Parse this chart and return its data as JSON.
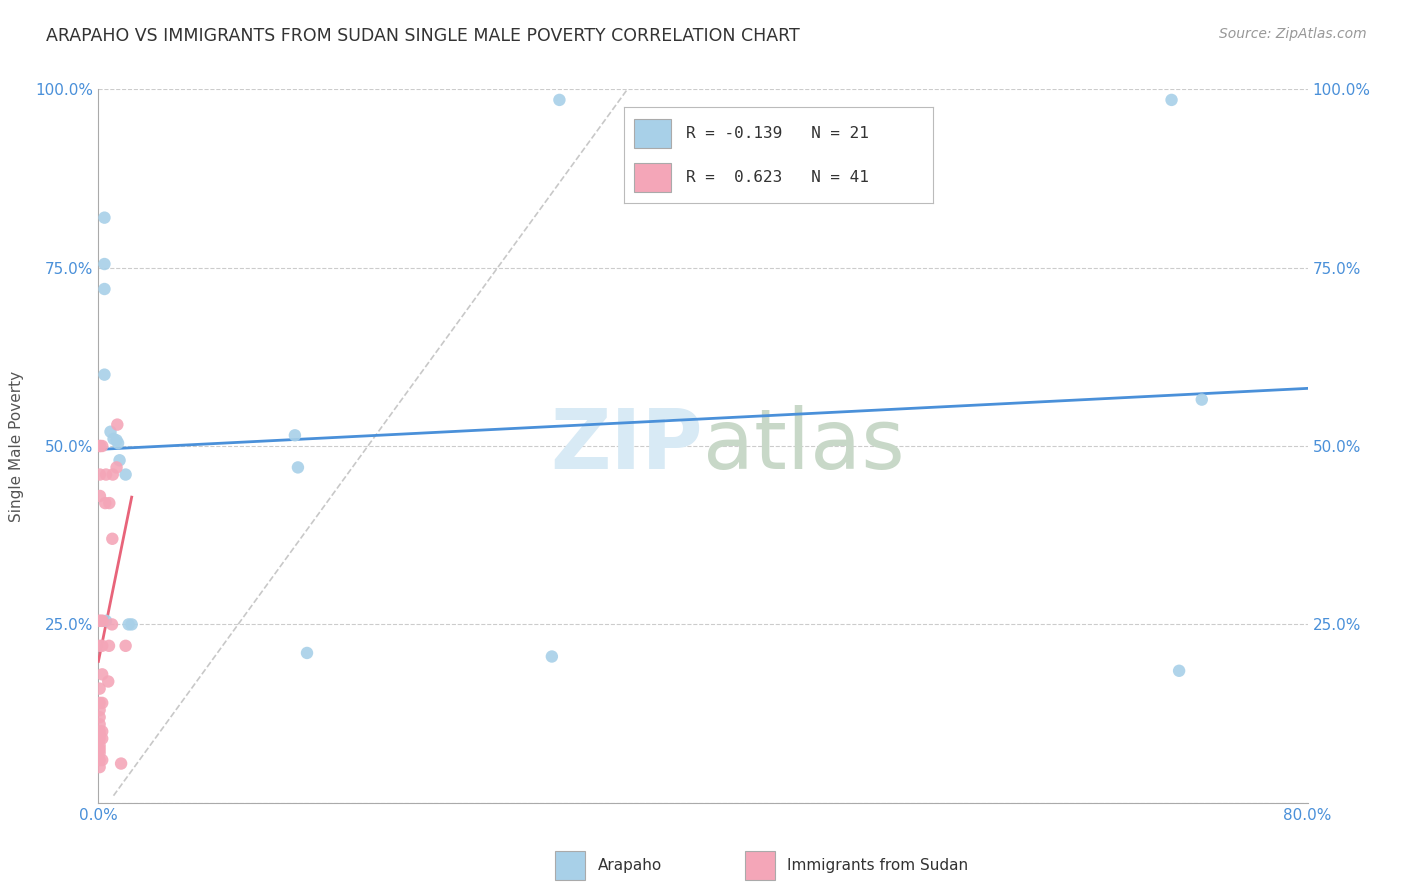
{
  "title": "ARAPAHO VS IMMIGRANTS FROM SUDAN SINGLE MALE POVERTY CORRELATION CHART",
  "source": "Source: ZipAtlas.com",
  "ylabel": "Single Male Poverty",
  "xlim": [
    0.0,
    0.8
  ],
  "ylim": [
    0.0,
    1.0
  ],
  "xticks": [
    0.0,
    0.1,
    0.2,
    0.3,
    0.4,
    0.5,
    0.6,
    0.7,
    0.8
  ],
  "xticklabels": [
    "0.0%",
    "",
    "",
    "",
    "",
    "",
    "",
    "",
    "80.0%"
  ],
  "yticks": [
    0.0,
    0.25,
    0.5,
    0.75,
    1.0
  ],
  "yticklabels": [
    "",
    "25.0%",
    "50.0%",
    "75.0%",
    "100.0%"
  ],
  "legend1_r": "-0.139",
  "legend1_n": "21",
  "legend2_r": "0.623",
  "legend2_n": "41",
  "color_blue": "#A8D0E8",
  "color_pink": "#F4A6B8",
  "color_blue_line": "#4A90D9",
  "color_pink_line": "#E8647A",
  "watermark_color": "#D8EAF5",
  "arapaho_x": [
    0.004,
    0.004,
    0.004,
    0.004,
    0.005,
    0.008,
    0.01,
    0.012,
    0.013,
    0.014,
    0.018,
    0.02,
    0.022,
    0.13,
    0.132,
    0.138,
    0.3,
    0.305,
    0.71,
    0.715,
    0.73
  ],
  "arapaho_y": [
    0.82,
    0.755,
    0.72,
    0.6,
    0.255,
    0.52,
    0.51,
    0.508,
    0.504,
    0.48,
    0.46,
    0.25,
    0.25,
    0.515,
    0.47,
    0.21,
    0.205,
    0.985,
    0.985,
    0.185,
    0.565
  ],
  "sudan_x": [
    0.0008,
    0.0008,
    0.0008,
    0.0008,
    0.0008,
    0.0008,
    0.0008,
    0.0008,
    0.0008,
    0.0008,
    0.0008,
    0.0008,
    0.0008,
    0.0008,
    0.0008,
    0.0008,
    0.001,
    0.001,
    0.001,
    0.001,
    0.0025,
    0.0025,
    0.0025,
    0.0025,
    0.0025,
    0.0025,
    0.0025,
    0.0025,
    0.0025,
    0.0045,
    0.005,
    0.0065,
    0.007,
    0.0072,
    0.009,
    0.0092,
    0.0095,
    0.012,
    0.0125,
    0.015,
    0.018
  ],
  "sudan_y": [
    0.05,
    0.06,
    0.07,
    0.075,
    0.08,
    0.09,
    0.095,
    0.1,
    0.11,
    0.12,
    0.13,
    0.14,
    0.16,
    0.22,
    0.255,
    0.255,
    0.43,
    0.46,
    0.5,
    0.5,
    0.06,
    0.09,
    0.1,
    0.14,
    0.18,
    0.22,
    0.255,
    0.255,
    0.5,
    0.42,
    0.46,
    0.17,
    0.22,
    0.42,
    0.25,
    0.37,
    0.46,
    0.47,
    0.53,
    0.055,
    0.22
  ],
  "dashed_line_x": [
    0.01,
    0.35
  ],
  "dashed_line_y": [
    0.01,
    1.0
  ]
}
